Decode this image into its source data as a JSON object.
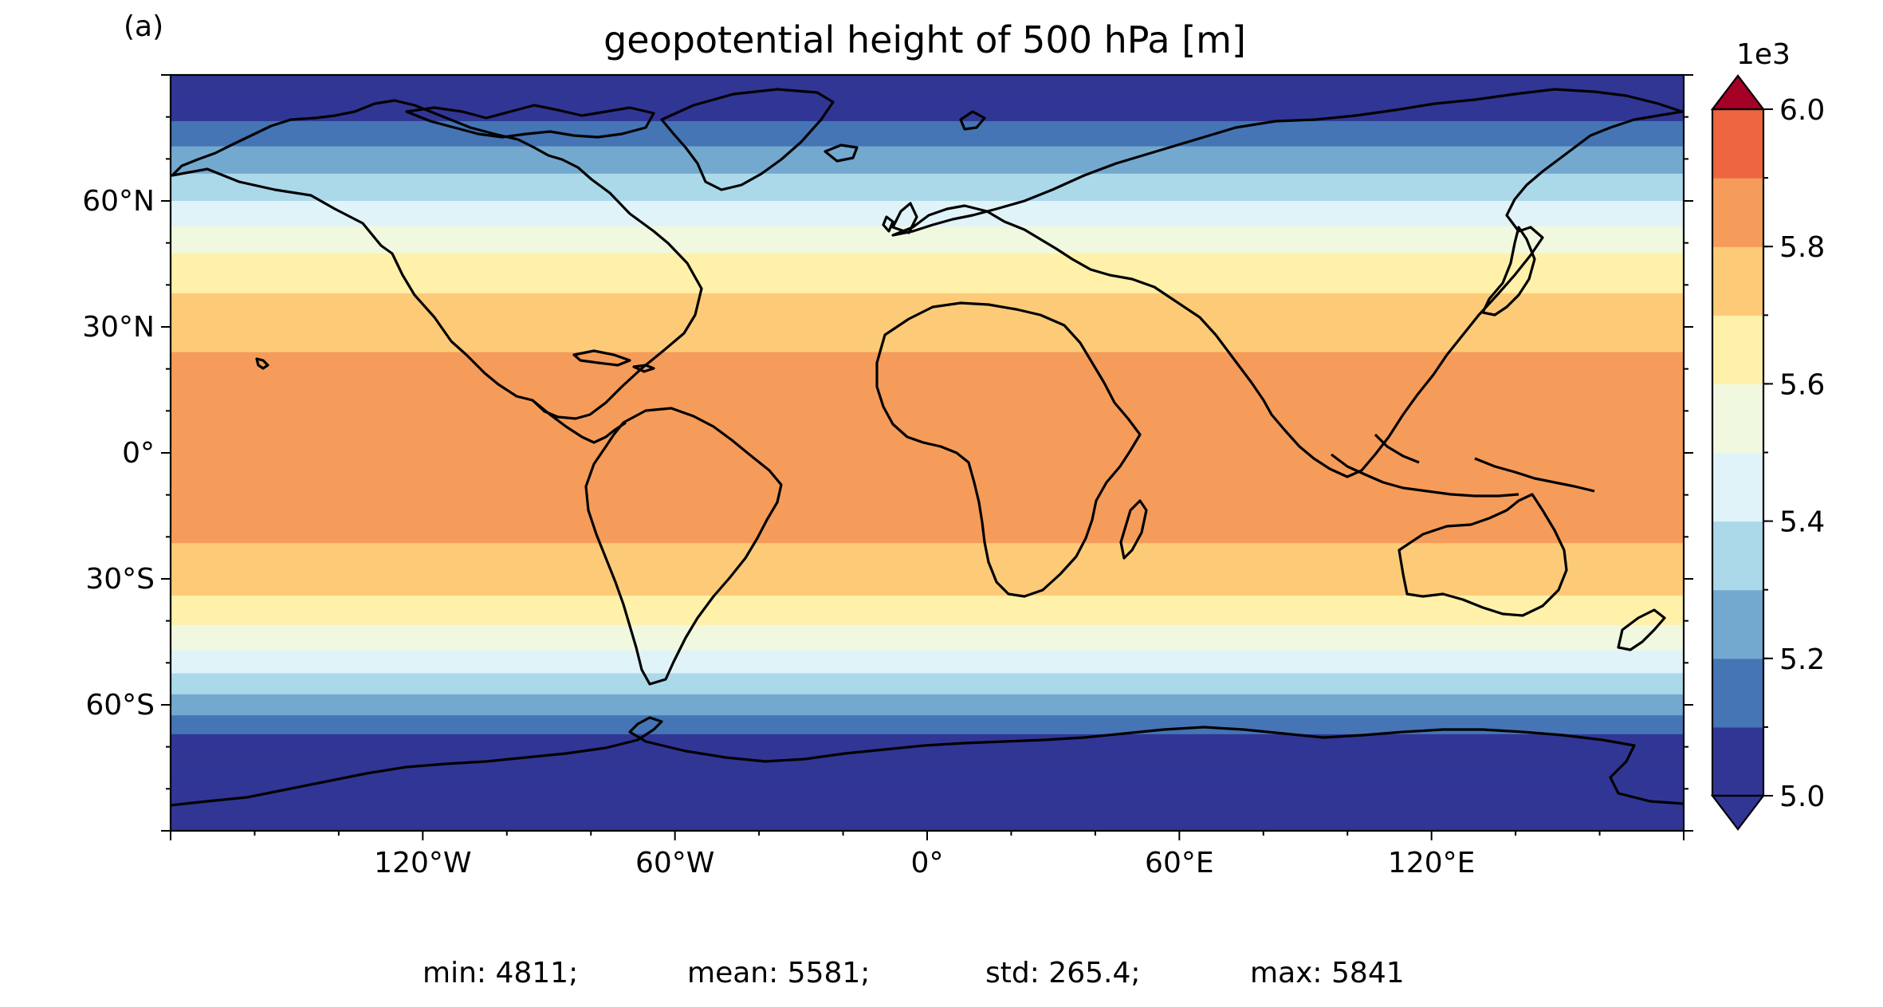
{
  "figure": {
    "panel_label": "(a)",
    "title": "geopotential height of 500 hPa [m]"
  },
  "map": {
    "lat_ticks": [
      "60°N",
      "30°N",
      "0°",
      "30°S",
      "60°S"
    ],
    "lat_tick_values": [
      60,
      30,
      0,
      -30,
      -60
    ],
    "lon_ticks": [
      "120°W",
      "60°W",
      "0°",
      "60°E",
      "120°E"
    ],
    "lon_tick_values": [
      -120,
      -60,
      0,
      60,
      120
    ],
    "extent": {
      "lon": [
        -180,
        180
      ],
      "lat": [
        -90,
        90
      ]
    },
    "field_levels": [
      5000,
      5100,
      5200,
      5300,
      5400,
      5500,
      5600,
      5700,
      5800,
      5900,
      6000
    ],
    "band_colors": [
      "#313695",
      "#4575b4",
      "#74a9cf",
      "#abd9e9",
      "#e0f3f8",
      "#f0f8e0",
      "#fff1aa",
      "#fdcb78",
      "#f59c5a",
      "#ee6641",
      "#d73027"
    ],
    "lat_profile": [
      {
        "lat": 90,
        "value": 4950
      },
      {
        "lat": 80,
        "value": 5080
      },
      {
        "lat": 70,
        "value": 5250
      },
      {
        "lat": 60,
        "value": 5400
      },
      {
        "lat": 50,
        "value": 5570
      },
      {
        "lat": 40,
        "value": 5680
      },
      {
        "lat": 30,
        "value": 5770
      },
      {
        "lat": 20,
        "value": 5820
      },
      {
        "lat": 0,
        "value": 5840
      },
      {
        "lat": -20,
        "value": 5810
      },
      {
        "lat": -30,
        "value": 5750
      },
      {
        "lat": -40,
        "value": 5620
      },
      {
        "lat": -50,
        "value": 5450
      },
      {
        "lat": -60,
        "value": 5250
      },
      {
        "lat": -70,
        "value": 5040
      },
      {
        "lat": -90,
        "value": 4900
      }
    ]
  },
  "colorbar": {
    "multiplier_label": "1e3",
    "tick_labels": [
      "6.0",
      "5.8",
      "5.6",
      "5.4",
      "5.2",
      "5.0"
    ],
    "tick_values": [
      6.0,
      5.8,
      5.6,
      5.4,
      5.2,
      5.0
    ],
    "extend": "both",
    "over_color": "#a50026",
    "under_color": "#313695"
  },
  "stats": {
    "min": "min: 4811;",
    "mean": "mean: 5581;",
    "std": "std: 265.4;",
    "max": "max: 5841"
  }
}
